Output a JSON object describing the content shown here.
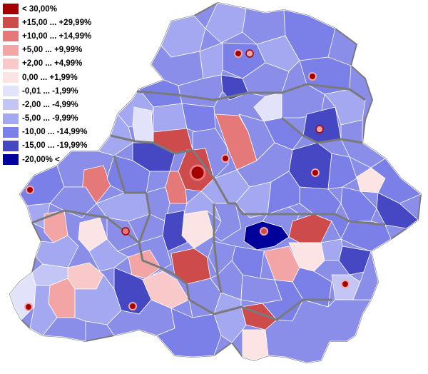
{
  "legend": [
    {
      "label": "< 30,00%",
      "color": "#a50000"
    },
    {
      "label": "+15,00 ... +29,99%",
      "color": "#cd4b4b"
    },
    {
      "label": "+10,00 ... +14,99%",
      "color": "#e57878"
    },
    {
      "label": "+5,00 ... +9,99%",
      "color": "#f3a5a5"
    },
    {
      "label": "+2,00 ... +4,99%",
      "color": "#f9c8c8"
    },
    {
      "label": "0,00 ... +1,99%",
      "color": "#fde4e4"
    },
    {
      "label": "-0,01 ... -1,99%",
      "color": "#e2e3fa"
    },
    {
      "label": "-2,00 ... -4,99%",
      "color": "#c3c6f5"
    },
    {
      "label": "-5,00 ... -9,99%",
      "color": "#a4a8f0"
    },
    {
      "label": "-10,00 ... -14,99%",
      "color": "#7b80e8"
    },
    {
      "label": "-15,00 ... -19,99%",
      "color": "#4548c2"
    },
    {
      "label": "-20,00% <",
      "color": "#00009a"
    }
  ],
  "map": {
    "border_color": "#7a7a7a",
    "city_marker_color": "#a50000"
  }
}
